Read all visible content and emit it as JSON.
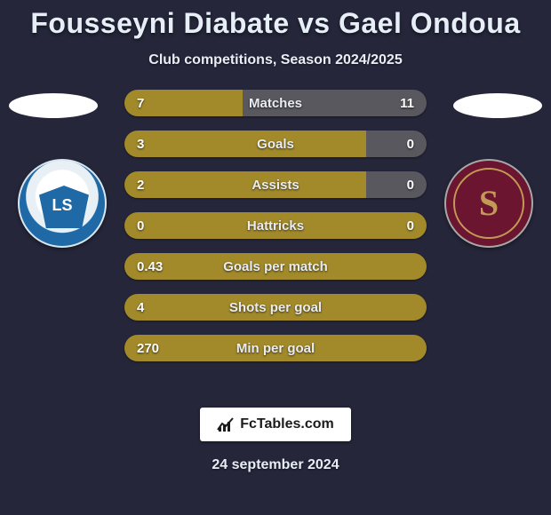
{
  "title": "Fousseyni Diabate vs Gael Ondoua",
  "subtitle": "Club competitions, Season 2024/2025",
  "date": "24 september 2024",
  "footer_brand": "FcTables.com",
  "colors": {
    "background": "#25263a",
    "bar_default": "#a28a2a",
    "bar_alt_right": "#58585e",
    "text": "#ffffff"
  },
  "players": {
    "left": {
      "name": "Fousseyni Diabate",
      "club": "Lausanne Sport",
      "club_abbrev": "LS"
    },
    "right": {
      "name": "Gael Ondoua",
      "club": "Servette FC",
      "club_abbrev": "S"
    }
  },
  "stats": [
    {
      "label": "Matches",
      "left_value": "7",
      "right_value": "11",
      "left_width_pct": 39,
      "right_width_pct": 61,
      "left_color": "#a28a2a",
      "right_color": "#58585e"
    },
    {
      "label": "Goals",
      "left_value": "3",
      "right_value": "0",
      "left_width_pct": 80,
      "right_width_pct": 20,
      "left_color": "#a28a2a",
      "right_color": "#58585e"
    },
    {
      "label": "Assists",
      "left_value": "2",
      "right_value": "0",
      "left_width_pct": 80,
      "right_width_pct": 20,
      "left_color": "#a28a2a",
      "right_color": "#58585e"
    },
    {
      "label": "Hattricks",
      "left_value": "0",
      "right_value": "0",
      "left_width_pct": 85,
      "right_width_pct": 15,
      "left_color": "#a28a2a",
      "right_color": "#a28a2a"
    },
    {
      "label": "Goals per match",
      "left_value": "0.43",
      "right_value": "",
      "left_width_pct": 100,
      "right_width_pct": 0,
      "left_color": "#a28a2a",
      "right_color": "#a28a2a"
    },
    {
      "label": "Shots per goal",
      "left_value": "4",
      "right_value": "",
      "left_width_pct": 100,
      "right_width_pct": 0,
      "left_color": "#a28a2a",
      "right_color": "#a28a2a"
    },
    {
      "label": "Min per goal",
      "left_value": "270",
      "right_value": "",
      "left_width_pct": 100,
      "right_width_pct": 0,
      "left_color": "#a28a2a",
      "right_color": "#a28a2a"
    }
  ]
}
